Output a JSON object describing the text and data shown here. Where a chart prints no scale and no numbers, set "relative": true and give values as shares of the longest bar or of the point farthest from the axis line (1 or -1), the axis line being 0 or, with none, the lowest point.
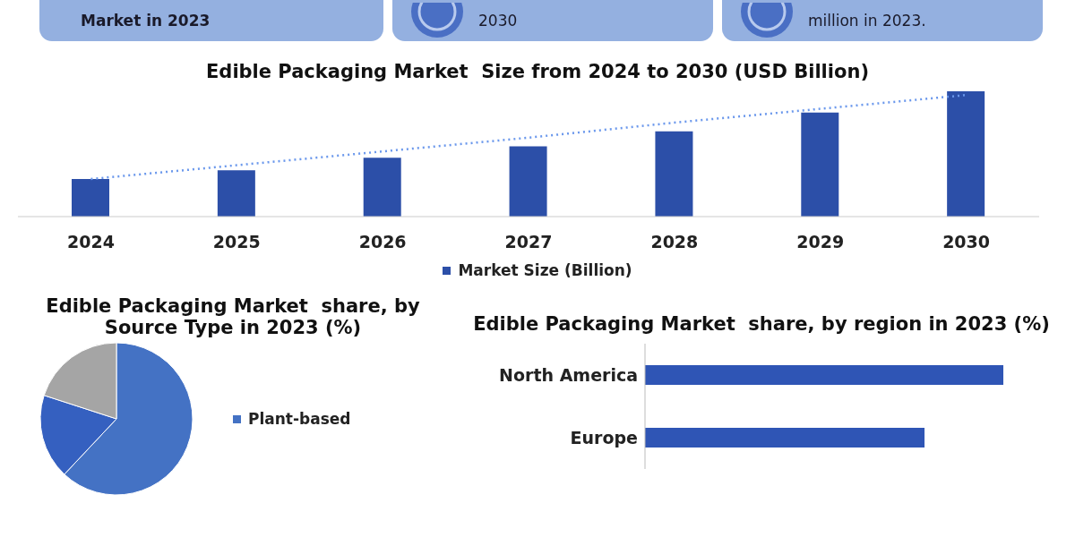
{
  "chart_data": [
    {
      "type": "other",
      "annotations": [
        "Market in 2023",
        "2030",
        "million in 2023."
      ]
    },
    {
      "type": "bar",
      "title": "Edible Packaging Market  Size from 2024 to 2030 (USD Billion)",
      "categories": [
        "2024",
        "2025",
        "2026",
        "2027",
        "2028",
        "2029",
        "2030"
      ],
      "relative": true,
      "legend": "bottom",
      "series": [
        {
          "name": "Market Size (Billion)",
          "color": "#2c4fa8",
          "values": [
            0.3,
            0.37,
            0.47,
            0.56,
            0.68,
            0.83,
            1
          ]
        },
        {
          "type": "line",
          "color": "#6b98ec",
          "line_style": "dotted",
          "marker": "none",
          "values": [
            0.3,
            0.41,
            0.52,
            0.63,
            0.75,
            0.86,
            0.97
          ]
        }
      ]
    },
    {
      "type": "pie",
      "title": "Edible Packaging Market  share, by Source Type in 2023 (%)",
      "categories": [
        "Plant-based",
        null,
        null
      ],
      "values": [
        62,
        18,
        20
      ],
      "colors": [
        "#4472c4",
        "#3560c0",
        "#a5a5a5"
      ],
      "legend": "right"
    },
    {
      "type": "bar",
      "orientation": "horizontal",
      "title": "Edible Packaging Market  share, by region in 2023 (%)",
      "categories": [
        "North America",
        "Europe"
      ],
      "values": [
        1,
        0.78
      ],
      "color": "#2f55b5",
      "relative": true
    }
  ]
}
